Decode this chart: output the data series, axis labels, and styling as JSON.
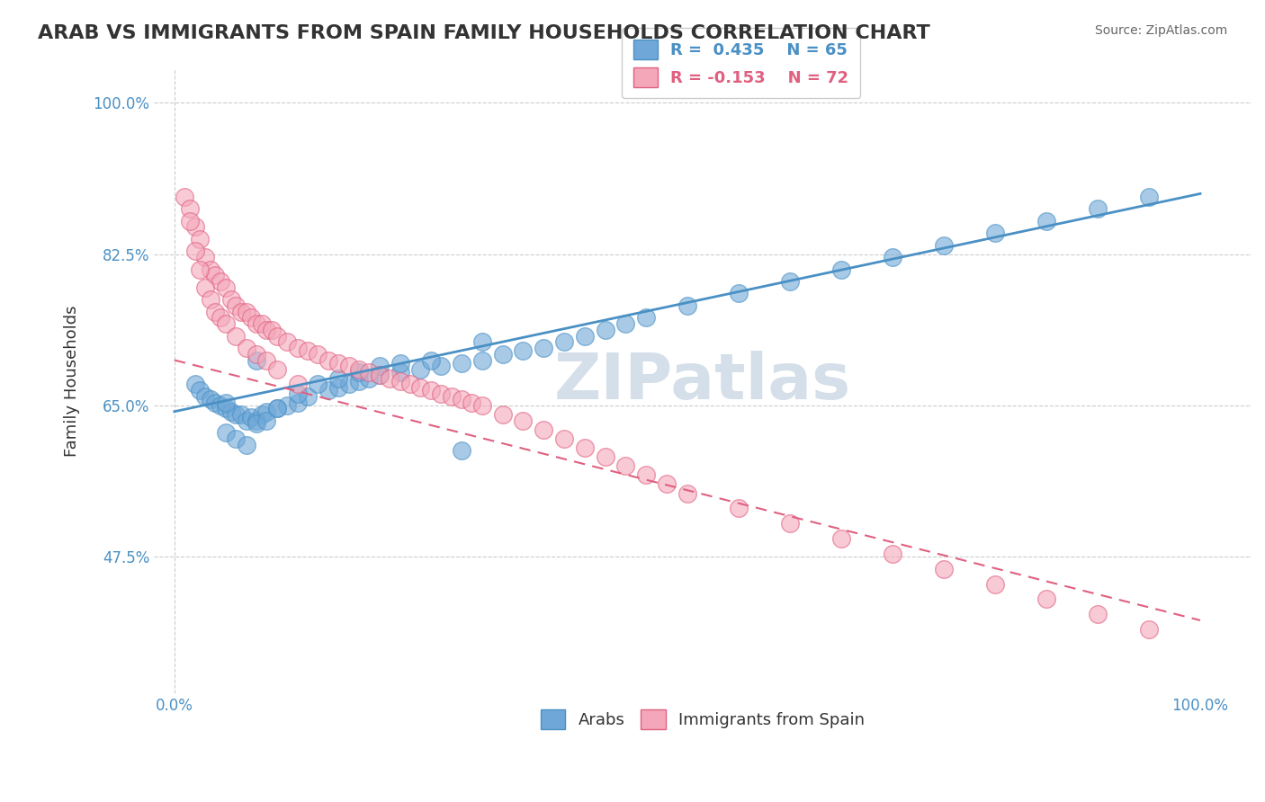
{
  "title": "ARAB VS IMMIGRANTS FROM SPAIN FAMILY HOUSEHOLDS CORRELATION CHART",
  "source": "Source: ZipAtlas.com",
  "xlabel": "",
  "ylabel": "Family Households",
  "legend_labels": [
    "Arabs",
    "Immigrants from Spain"
  ],
  "R_arab": 0.435,
  "N_arab": 65,
  "R_spain": -0.153,
  "N_spain": 72,
  "xlim": [
    0.0,
    1.0
  ],
  "ylim": [
    0.0,
    1.0
  ],
  "xtick_labels": [
    "0.0%",
    "100.0%"
  ],
  "ytick_labels": [
    "47.5%",
    "65.0%",
    "82.5%",
    "100.0%"
  ],
  "ytick_positions": [
    0.375,
    0.625,
    0.875,
    1.125
  ],
  "grid_color": "#cccccc",
  "background_color": "#ffffff",
  "arab_color": "#6fa8d8",
  "arab_edge_color": "#4a90c4",
  "spain_color": "#f4a7b9",
  "spain_edge_color": "#e06080",
  "trend_arab_color": "#4a90c4",
  "trend_spain_color": "#e06080",
  "trend_spain_dash": [
    6,
    4
  ],
  "watermark_color": "#d0dce8",
  "watermark_text": "ZIPatlas",
  "arab_points_x": [
    0.02,
    0.025,
    0.03,
    0.035,
    0.04,
    0.045,
    0.05,
    0.055,
    0.06,
    0.065,
    0.07,
    0.075,
    0.08,
    0.085,
    0.09,
    0.1,
    0.11,
    0.12,
    0.13,
    0.15,
    0.16,
    0.17,
    0.18,
    0.19,
    0.2,
    0.22,
    0.24,
    0.26,
    0.28,
    0.3,
    0.32,
    0.34,
    0.36,
    0.38,
    0.4,
    0.42,
    0.44,
    0.46,
    0.5,
    0.55,
    0.6,
    0.65,
    0.7,
    0.75,
    0.8,
    0.85,
    0.9,
    0.95,
    0.28,
    0.3,
    0.05,
    0.06,
    0.07,
    0.08,
    0.09,
    0.1,
    0.12,
    0.14,
    0.16,
    0.18,
    0.2,
    0.22,
    0.25,
    0.05,
    0.08
  ],
  "arab_points_y": [
    0.66,
    0.65,
    0.64,
    0.635,
    0.63,
    0.625,
    0.62,
    0.615,
    0.61,
    0.61,
    0.6,
    0.605,
    0.6,
    0.61,
    0.615,
    0.62,
    0.625,
    0.63,
    0.64,
    0.65,
    0.655,
    0.66,
    0.665,
    0.67,
    0.675,
    0.68,
    0.685,
    0.69,
    0.695,
    0.7,
    0.71,
    0.715,
    0.72,
    0.73,
    0.74,
    0.75,
    0.76,
    0.77,
    0.79,
    0.81,
    0.83,
    0.85,
    0.87,
    0.89,
    0.91,
    0.93,
    0.95,
    0.97,
    0.55,
    0.73,
    0.58,
    0.57,
    0.56,
    0.595,
    0.6,
    0.62,
    0.645,
    0.66,
    0.67,
    0.68,
    0.69,
    0.695,
    0.7,
    0.63,
    0.7
  ],
  "spain_points_x": [
    0.01,
    0.015,
    0.02,
    0.025,
    0.03,
    0.035,
    0.04,
    0.045,
    0.05,
    0.055,
    0.06,
    0.065,
    0.07,
    0.075,
    0.08,
    0.085,
    0.09,
    0.095,
    0.1,
    0.11,
    0.12,
    0.13,
    0.14,
    0.15,
    0.16,
    0.17,
    0.18,
    0.19,
    0.2,
    0.21,
    0.22,
    0.23,
    0.24,
    0.25,
    0.26,
    0.27,
    0.28,
    0.29,
    0.3,
    0.32,
    0.34,
    0.36,
    0.38,
    0.4,
    0.42,
    0.44,
    0.46,
    0.48,
    0.5,
    0.55,
    0.6,
    0.65,
    0.7,
    0.75,
    0.8,
    0.85,
    0.9,
    0.95,
    0.015,
    0.02,
    0.025,
    0.03,
    0.035,
    0.04,
    0.045,
    0.05,
    0.06,
    0.07,
    0.08,
    0.09,
    0.1,
    0.12
  ],
  "spain_points_y": [
    0.97,
    0.95,
    0.92,
    0.9,
    0.87,
    0.85,
    0.84,
    0.83,
    0.82,
    0.8,
    0.79,
    0.78,
    0.78,
    0.77,
    0.76,
    0.76,
    0.75,
    0.75,
    0.74,
    0.73,
    0.72,
    0.715,
    0.71,
    0.7,
    0.695,
    0.69,
    0.685,
    0.68,
    0.675,
    0.67,
    0.665,
    0.66,
    0.655,
    0.65,
    0.645,
    0.64,
    0.635,
    0.63,
    0.625,
    0.61,
    0.6,
    0.585,
    0.57,
    0.555,
    0.54,
    0.525,
    0.51,
    0.495,
    0.48,
    0.455,
    0.43,
    0.405,
    0.38,
    0.355,
    0.33,
    0.305,
    0.28,
    0.255,
    0.93,
    0.88,
    0.85,
    0.82,
    0.8,
    0.78,
    0.77,
    0.76,
    0.74,
    0.72,
    0.71,
    0.7,
    0.685,
    0.66
  ]
}
